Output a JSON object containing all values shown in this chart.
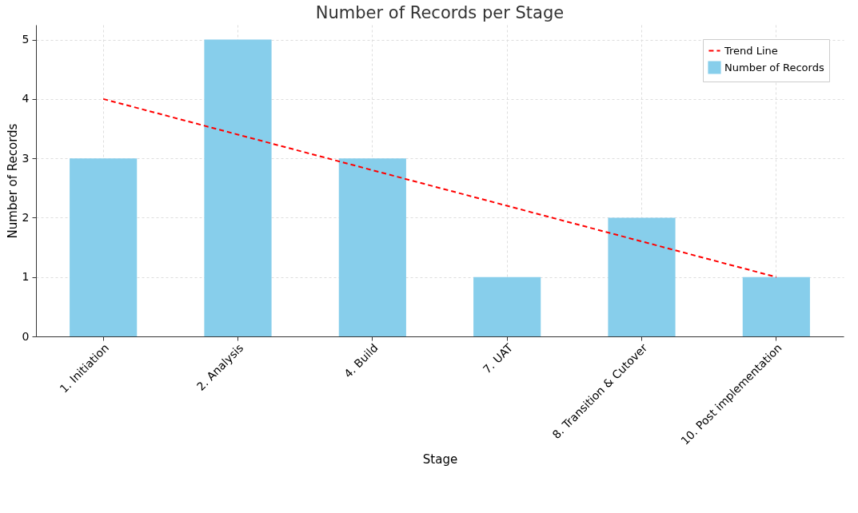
{
  "chart_data": {
    "type": "bar",
    "title": "Number of Records per Stage",
    "xlabel": "Stage",
    "ylabel": "Number of Records",
    "categories": [
      "1. Initiation",
      "2. Analysis",
      "4. Build",
      "7. UAT",
      "8. Transition & Cutover",
      "10. Post implementation"
    ],
    "series": [
      {
        "name": "Trend Line",
        "type": "line",
        "color": "#ff0000",
        "line_style": "dashed",
        "values": [
          4,
          3.4,
          2.8,
          2.2,
          1.6,
          1
        ]
      },
      {
        "name": "Number of Records",
        "color": "#87ceeb",
        "values": [
          3,
          5,
          3,
          1,
          2,
          1
        ]
      }
    ],
    "ylim": [
      0,
      5.25
    ],
    "yticks": [
      0,
      1,
      2,
      3,
      4,
      5
    ],
    "grid": true,
    "legend": "top right"
  }
}
